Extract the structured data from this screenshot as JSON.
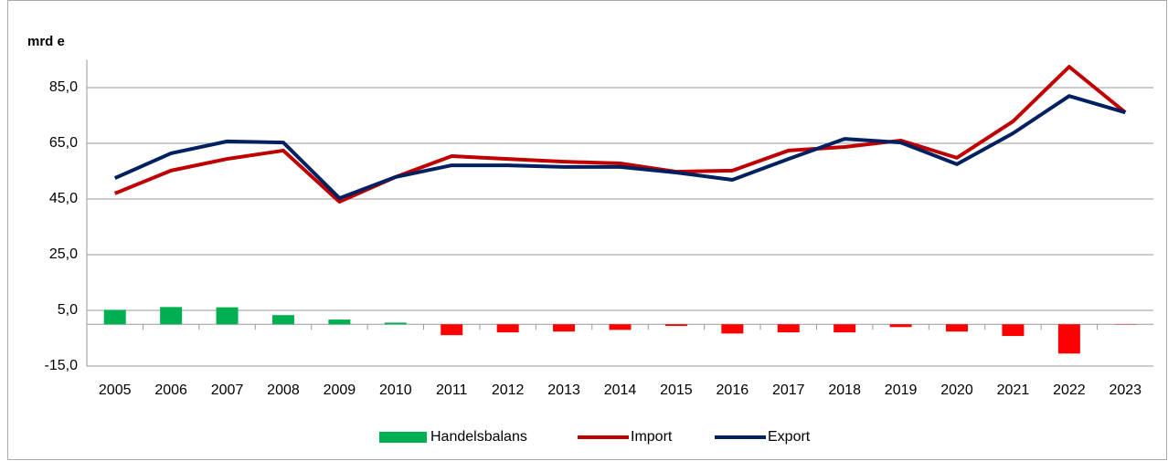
{
  "chart_data": {
    "type": "combo",
    "title": "mrd e",
    "categories": [
      "2005",
      "2006",
      "2007",
      "2008",
      "2009",
      "2010",
      "2011",
      "2012",
      "2013",
      "2014",
      "2015",
      "2016",
      "2017",
      "2018",
      "2019",
      "2020",
      "2021",
      "2022",
      "2023"
    ],
    "series": [
      {
        "name": "Handelsbalans",
        "type": "bar",
        "color": "#00b050",
        "negative_color": "#ff0000",
        "values": [
          5.2,
          6.2,
          6.1,
          3.3,
          1.7,
          0.6,
          -3.9,
          -2.9,
          -2.6,
          -2.0,
          -0.6,
          -3.3,
          -2.9,
          -2.9,
          -1.0,
          -2.6,
          -4.2,
          -10.5,
          -0.1
        ]
      },
      {
        "name": "Import",
        "type": "line",
        "color": "#c00000",
        "values": [
          47.0,
          55.2,
          59.4,
          62.4,
          44.0,
          52.9,
          60.4,
          59.4,
          58.4,
          57.8,
          54.8,
          55.2,
          62.4,
          63.7,
          66.0,
          59.8,
          72.9,
          92.5,
          76.1
        ]
      },
      {
        "name": "Export",
        "type": "line",
        "color": "#002060",
        "values": [
          52.5,
          61.4,
          65.7,
          65.3,
          45.3,
          52.9,
          57.1,
          57.1,
          56.5,
          56.5,
          54.5,
          51.9,
          59.4,
          66.6,
          65.3,
          57.5,
          68.6,
          82.0,
          76.1
        ]
      }
    ],
    "ylim": [
      -15,
      95
    ],
    "yticks": [
      {
        "value": -15,
        "label": "-15,0"
      },
      {
        "value": 5,
        "label": "5,0"
      },
      {
        "value": 25,
        "label": "25,0"
      },
      {
        "value": 45,
        "label": "45,0"
      },
      {
        "value": 65,
        "label": "65,0"
      },
      {
        "value": 85,
        "label": "85,0"
      }
    ],
    "grid": true,
    "legend": "bottom"
  }
}
